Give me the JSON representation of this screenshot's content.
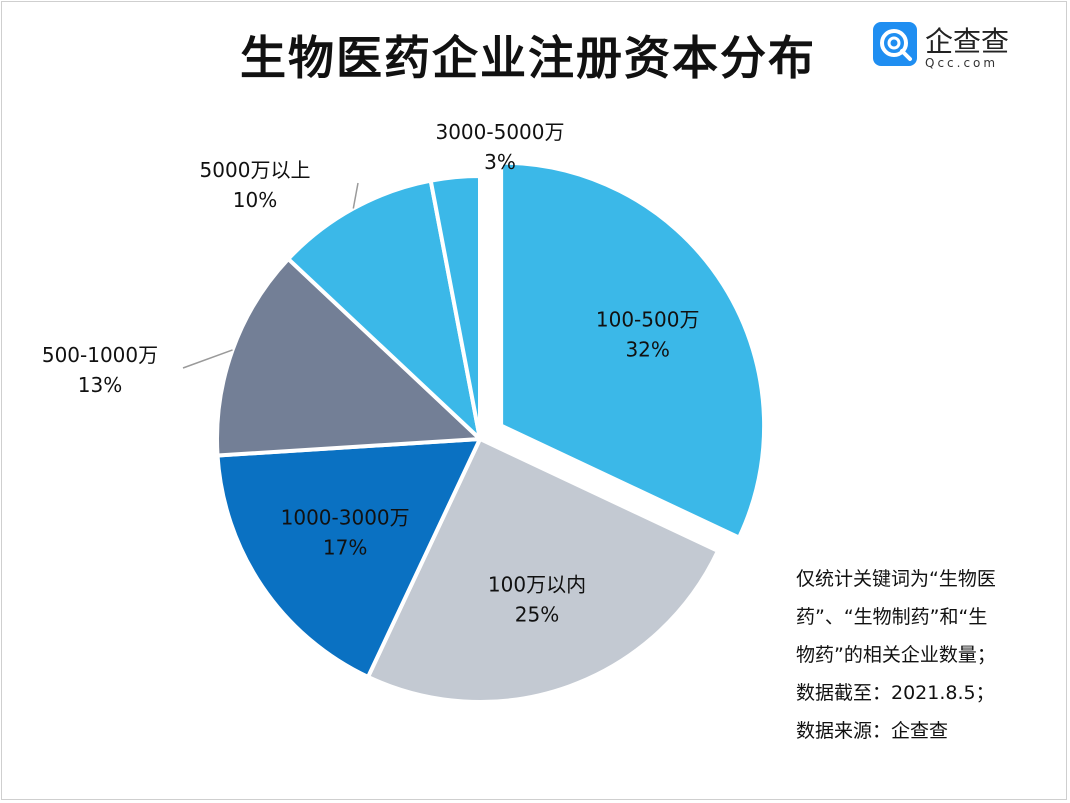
{
  "title": "生物医药企业注册资本分布",
  "logo": {
    "name": "企查查",
    "domain": "Qcc.com",
    "brand_color": "#1f8ef1"
  },
  "chart_data": {
    "type": "pie",
    "title": "生物医药企业注册资本分布",
    "slices": [
      {
        "label": "100-500万",
        "percent_text": "32%",
        "value": 32,
        "color": "#3bb8e8"
      },
      {
        "label": "100万以内",
        "percent_text": "25%",
        "value": 25,
        "color": "#c3c9d2"
      },
      {
        "label": "1000-3000万",
        "percent_text": "17%",
        "value": 17,
        "color": "#0a71c2"
      },
      {
        "label": "500-1000万",
        "percent_text": "13%",
        "value": 13,
        "color": "#737f96"
      },
      {
        "label": "5000万以上",
        "percent_text": "10%",
        "value": 10,
        "color": "#3bb8e8"
      },
      {
        "label": "3000-5000万",
        "percent_text": "3%",
        "value": 3,
        "color": "#3bb8e8"
      }
    ]
  },
  "note": {
    "lines": [
      "仅统计关键词为“生物医",
      "药”、“生物制药”和“生",
      "物药”的相关企业数量；",
      "数据截至：2021.8.5；",
      "数据来源：企查查"
    ]
  }
}
